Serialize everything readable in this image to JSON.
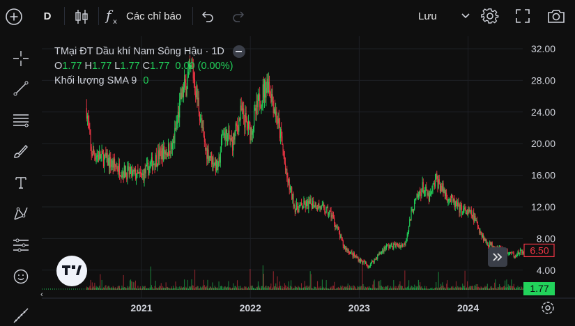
{
  "toolbar": {
    "interval": "D",
    "indicators_label": "Các chỉ báo",
    "save_label": "Lưu"
  },
  "left_tools": [
    "crosshair-icon",
    "trend-line-icon",
    "fib-lines-icon",
    "brush-icon",
    "text-icon",
    "pattern-icon",
    "forecast-icon",
    "emoji-icon",
    "ruler-icon"
  ],
  "legend": {
    "symbol": "TMại ĐT Dầu khí Nam Sông Hậu · 1D",
    "o_label": "O",
    "o_value": "1.77",
    "h_label": "H",
    "h_value": "1.77",
    "l_label": "L",
    "l_value": "1.77",
    "c_label": "C",
    "c_value": "1.77",
    "change": "0.00 (0.00%)",
    "volume_label": "Khối lượng SMA 9",
    "volume_value": "0"
  },
  "colors": {
    "up": "#22d35b",
    "down": "#f23645",
    "background": "#0f0f0f",
    "grid": "#1e2026"
  },
  "chart_data": {
    "type": "candlestick",
    "x_axis_labels": [
      "2021",
      "2022",
      "2023",
      "2024"
    ],
    "y_axis_labels": [
      "32.00",
      "28.00",
      "24.00",
      "20.00",
      "16.00",
      "12.00",
      "8.00",
      "4.00"
    ],
    "ylim": [
      2.2,
      33.4
    ],
    "grid": true,
    "price_badges": [
      {
        "value": 6.5,
        "label": "6.50",
        "style": "outline-red"
      },
      {
        "value": 1.77,
        "label": "1.77",
        "style": "filled-green"
      }
    ],
    "series": [
      {
        "name": "price",
        "x": [
          "2020-07-01",
          "2020-07-15",
          "2020-09-01",
          "2020-11-01",
          "2021-01-01",
          "2021-03-01",
          "2021-04-15",
          "2021-05-15",
          "2021-06-20",
          "2021-07-15",
          "2021-08-01",
          "2021-09-15",
          "2021-10-01",
          "2021-11-01",
          "2021-12-01",
          "2022-01-01",
          "2022-02-01",
          "2022-03-01",
          "2022-03-20",
          "2022-04-15",
          "2022-05-01",
          "2022-06-01",
          "2022-08-01",
          "2022-10-01",
          "2022-11-10",
          "2022-12-15",
          "2023-02-01",
          "2023-04-01",
          "2023-06-01",
          "2023-07-01",
          "2023-08-01",
          "2023-08-25",
          "2023-09-15",
          "2023-10-20",
          "2023-12-01",
          "2024-01-15",
          "2024-03-01",
          "2024-04-15",
          "2024-06-01",
          "2024-07-15"
        ],
        "y": [
          24.5,
          19.0,
          18.0,
          16.5,
          15.8,
          18.6,
          19.5,
          26.0,
          29.5,
          24.0,
          19.5,
          16.8,
          21.5,
          20.0,
          24.0,
          21.5,
          25.5,
          28.0,
          25.0,
          20.5,
          16.0,
          11.8,
          12.5,
          11.0,
          7.0,
          5.8,
          4.5,
          7.0,
          7.2,
          12.0,
          14.5,
          13.0,
          15.5,
          13.5,
          11.8,
          11.0,
          7.5,
          6.8,
          5.9,
          6.5
        ]
      }
    ],
    "volume_max_fraction": 0.37
  }
}
